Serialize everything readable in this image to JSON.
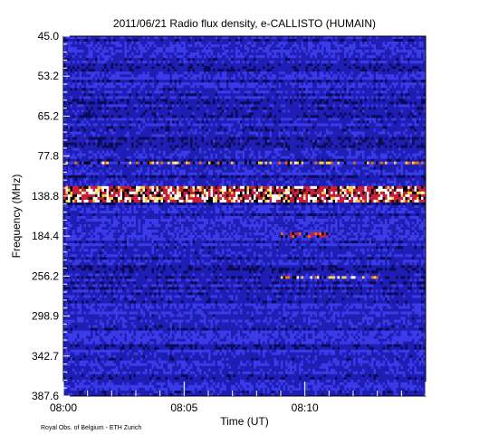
{
  "chart_data": {
    "type": "heatmap",
    "title": "2011/06/21  Radio flux density, e-CALLISTO (HUMAIN)",
    "xlabel": "Time (UT)",
    "ylabel": "Frequency (MHz)",
    "credit": "Royal Obs. of Belgium - ETH Zurich",
    "x_ticks": [
      "08:00",
      "08:05",
      "08:10"
    ],
    "x_range_minutes": [
      0,
      15
    ],
    "y_ticks": [
      "45.0",
      "53.2",
      "65.2",
      "77.8",
      "138.8",
      "184.4",
      "256.2",
      "298.9",
      "342.7",
      "387.6"
    ],
    "y_range_mhz": [
      45.0,
      387.6
    ],
    "y_axis_inverted": true,
    "colormap": [
      "#000000",
      "#0a0a55",
      "#1e1eb4",
      "#3a3ae8",
      "#c81e3c",
      "#ff6a00",
      "#ffd23c",
      "#ffffff"
    ],
    "features": [
      {
        "label": "strong interference band",
        "freq_mhz": [
          125,
          145
        ],
        "time_min": [
          0,
          15
        ],
        "level": 0.85
      },
      {
        "label": "intermittent spikes",
        "freq_mhz": [
          88,
          92
        ],
        "time_min": [
          0,
          15
        ],
        "level": 0.7
      },
      {
        "label": "spikes",
        "freq_mhz": [
          255,
          258
        ],
        "time_min": [
          9,
          13
        ],
        "level": 0.75
      },
      {
        "label": "weak band",
        "freq_mhz": [
          180,
          186
        ],
        "time_min": [
          9,
          11
        ],
        "level": 0.5
      }
    ]
  }
}
